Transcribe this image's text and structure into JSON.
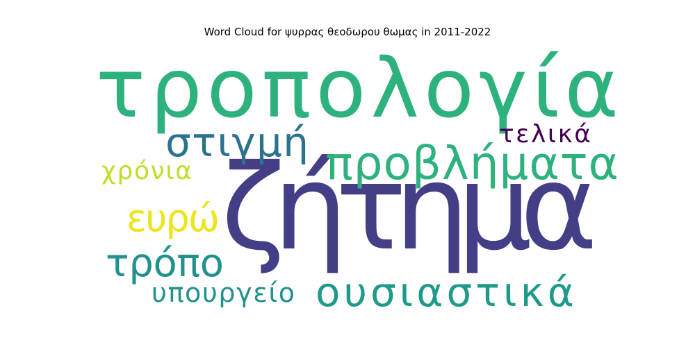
{
  "chart_data": {
    "type": "wordcloud",
    "title": "Word Cloud for ψυρρας θεοδωρου θωμας in 2011-2022",
    "words": [
      {
        "text": "τροπολογία",
        "color": "#2db27d"
      },
      {
        "text": "ζήτημα",
        "color": "#433e85"
      },
      {
        "text": "προβλήματα",
        "color": "#2db27d"
      },
      {
        "text": "στιγμή",
        "color": "#2c728e"
      },
      {
        "text": "τελικά",
        "color": "#440154"
      },
      {
        "text": "χρόνια",
        "color": "#bddf26"
      },
      {
        "text": "ευρώ",
        "color": "#ece51b"
      },
      {
        "text": "τρόπο",
        "color": "#21918c"
      },
      {
        "text": "ουσιαστικά",
        "color": "#1f9a8a"
      },
      {
        "text": "υπουργείο",
        "color": "#21918c"
      }
    ]
  }
}
